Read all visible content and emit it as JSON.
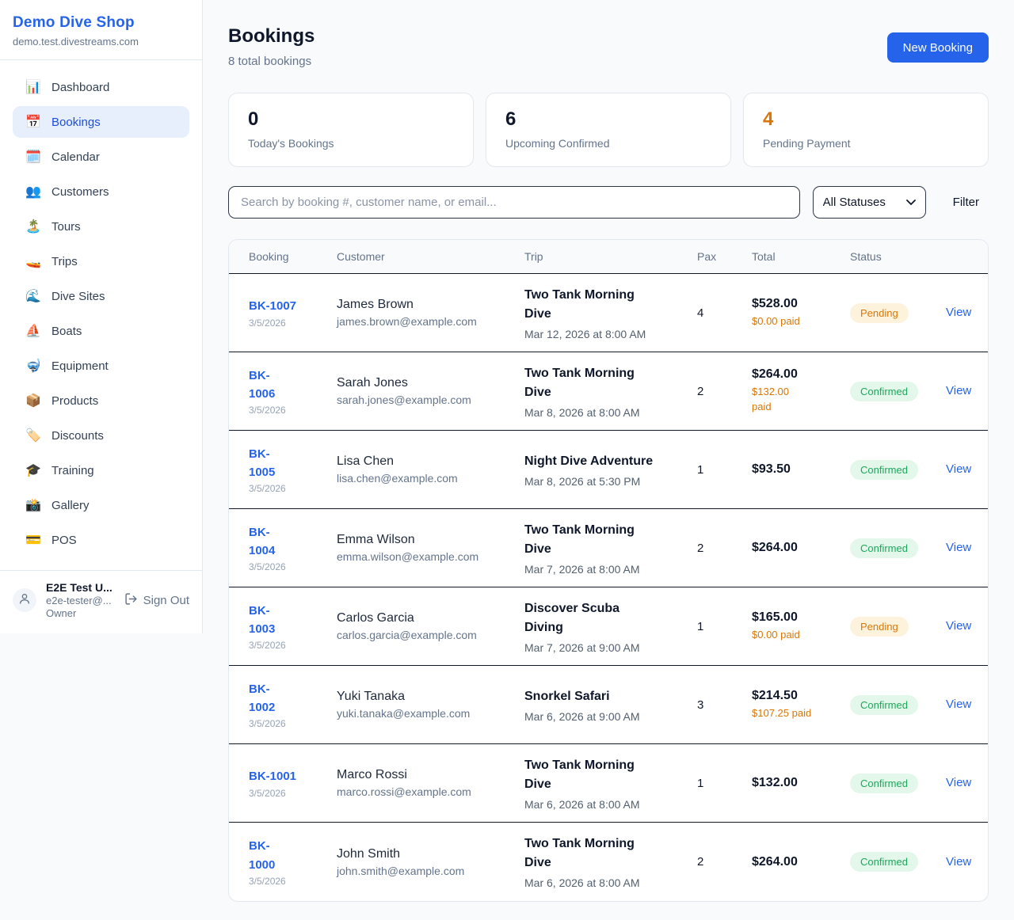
{
  "colors": {
    "accent": "#2563eb",
    "pending_bg": "#fdf3dd",
    "pending_text": "#d97706",
    "confirmed_bg": "#e3f7ea",
    "confirmed_text": "#1ea75c",
    "paid_text": "#d97706",
    "stat_warning": "#d97706",
    "stat_default": "#0f172a"
  },
  "sidebar": {
    "shop_name": "Demo Dive Shop",
    "shop_domain": "demo.test.divestreams.com",
    "items": [
      {
        "label": "Dashboard",
        "icon_name": "bar-chart-icon",
        "glyph": "📊",
        "active": false
      },
      {
        "label": "Bookings",
        "icon_name": "calendar-icon",
        "glyph": "📅",
        "active": true
      },
      {
        "label": "Calendar",
        "icon_name": "spiral-calendar-icon",
        "glyph": "🗓️",
        "active": false
      },
      {
        "label": "Customers",
        "icon_name": "people-icon",
        "glyph": "👥",
        "active": false
      },
      {
        "label": "Tours",
        "icon_name": "island-icon",
        "glyph": "🏝️",
        "active": false
      },
      {
        "label": "Trips",
        "icon_name": "speedboat-icon",
        "glyph": "🚤",
        "active": false
      },
      {
        "label": "Dive Sites",
        "icon_name": "wave-icon",
        "glyph": "🌊",
        "active": false
      },
      {
        "label": "Boats",
        "icon_name": "sailboat-icon",
        "glyph": "⛵",
        "active": false
      },
      {
        "label": "Equipment",
        "icon_name": "diving-mask-icon",
        "glyph": "🤿",
        "active": false
      },
      {
        "label": "Products",
        "icon_name": "package-icon",
        "glyph": "📦",
        "active": false
      },
      {
        "label": "Discounts",
        "icon_name": "tag-icon",
        "glyph": "🏷️",
        "active": false
      },
      {
        "label": "Training",
        "icon_name": "graduation-cap-icon",
        "glyph": "🎓",
        "active": false
      },
      {
        "label": "Gallery",
        "icon_name": "camera-icon",
        "glyph": "📸",
        "active": false
      },
      {
        "label": "POS",
        "icon_name": "credit-card-icon",
        "glyph": "💳",
        "active": false
      }
    ],
    "user": {
      "name": "E2E Test U...",
      "email": "e2e-tester@...",
      "role": "Owner",
      "sign_out_label": "Sign Out"
    }
  },
  "header": {
    "title": "Bookings",
    "subtitle": "8 total bookings",
    "new_booking_label": "New Booking"
  },
  "stats": [
    {
      "value": "0",
      "label": "Today's Bookings",
      "color": "#0f172a"
    },
    {
      "value": "6",
      "label": "Upcoming Confirmed",
      "color": "#0f172a"
    },
    {
      "value": "4",
      "label": "Pending Payment",
      "color": "#d97706"
    }
  ],
  "filters": {
    "search_placeholder": "Search by booking #, customer name, or email...",
    "status_select_value": "All Statuses",
    "filter_label": "Filter"
  },
  "table": {
    "columns": [
      "Booking",
      "Customer",
      "Trip",
      "Pax",
      "Total",
      "Status"
    ],
    "view_label": "View",
    "rows": [
      {
        "booking_id": "BK-1007",
        "booking_date": "3/5/2026",
        "customer_name": "James Brown",
        "customer_email": "james.brown@example.com",
        "trip_name": "Two Tank Morning\nDive",
        "trip_datetime": "Mar 12, 2026 at 8:00 AM",
        "pax": "4",
        "total": "$528.00",
        "paid": "$0.00 paid",
        "status": "Pending"
      },
      {
        "booking_id": "BK-\n1006",
        "booking_date": "3/5/2026",
        "customer_name": "Sarah Jones",
        "customer_email": "sarah.jones@example.com",
        "trip_name": "Two Tank Morning\nDive",
        "trip_datetime": "Mar 8, 2026 at 8:00 AM",
        "pax": "2",
        "total": "$264.00",
        "paid": "$132.00\npaid",
        "status": "Confirmed"
      },
      {
        "booking_id": "BK-\n1005",
        "booking_date": "3/5/2026",
        "customer_name": "Lisa Chen",
        "customer_email": "lisa.chen@example.com",
        "trip_name": "Night Dive Adventure",
        "trip_datetime": "Mar 8, 2026 at 5:30 PM",
        "pax": "1",
        "total": "$93.50",
        "paid": "",
        "status": "Confirmed"
      },
      {
        "booking_id": "BK-\n1004",
        "booking_date": "3/5/2026",
        "customer_name": "Emma Wilson",
        "customer_email": "emma.wilson@example.com",
        "trip_name": "Two Tank Morning\nDive",
        "trip_datetime": "Mar 7, 2026 at 8:00 AM",
        "pax": "2",
        "total": "$264.00",
        "paid": "",
        "status": "Confirmed"
      },
      {
        "booking_id": "BK-\n1003",
        "booking_date": "3/5/2026",
        "customer_name": "Carlos Garcia",
        "customer_email": "carlos.garcia@example.com",
        "trip_name": "Discover Scuba\nDiving",
        "trip_datetime": "Mar 7, 2026 at 9:00 AM",
        "pax": "1",
        "total": "$165.00",
        "paid": "$0.00 paid",
        "status": "Pending"
      },
      {
        "booking_id": "BK-\n1002",
        "booking_date": "3/5/2026",
        "customer_name": "Yuki Tanaka",
        "customer_email": "yuki.tanaka@example.com",
        "trip_name": "Snorkel Safari",
        "trip_datetime": "Mar 6, 2026 at 9:00 AM",
        "pax": "3",
        "total": "$214.50",
        "paid": "$107.25 paid",
        "status": "Confirmed"
      },
      {
        "booking_id": "BK-1001",
        "booking_date": "3/5/2026",
        "customer_name": "Marco Rossi",
        "customer_email": "marco.rossi@example.com",
        "trip_name": "Two Tank Morning\nDive",
        "trip_datetime": "Mar 6, 2026 at 8:00 AM",
        "pax": "1",
        "total": "$132.00",
        "paid": "",
        "status": "Confirmed"
      },
      {
        "booking_id": "BK-\n1000",
        "booking_date": "3/5/2026",
        "customer_name": "John Smith",
        "customer_email": "john.smith@example.com",
        "trip_name": "Two Tank Morning\nDive",
        "trip_datetime": "Mar 6, 2026 at 8:00 AM",
        "pax": "2",
        "total": "$264.00",
        "paid": "",
        "status": "Confirmed"
      }
    ]
  }
}
